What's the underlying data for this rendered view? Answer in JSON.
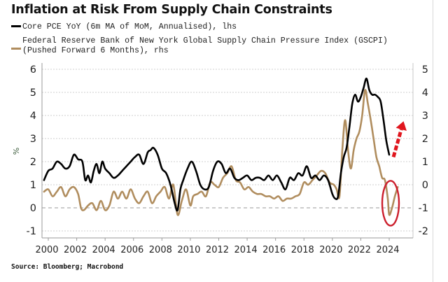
{
  "chart_data": {
    "type": "line",
    "title": "Inflation at Risk From Supply Chain Constraints",
    "legend": [
      {
        "label": "Core PCE YoY (6m MA of MoM, Annualised), lhs",
        "color": "#000000"
      },
      {
        "label_line1": "Federal Reserve Bank of New York Global Supply Chain Pressure Index (GSCPI)",
        "label_line2": "(Pushed Forward 6 Months), rhs",
        "color": "#b08d5e"
      }
    ],
    "ylabel_left": "%",
    "left_axis": {
      "ylim": [
        -1.2,
        6.2
      ],
      "ticks": [
        "6",
        "5",
        "4",
        "3",
        "2",
        "1",
        "0",
        "-1"
      ]
    },
    "right_axis": {
      "ylim": [
        -2.2,
        5.2
      ],
      "ticks": [
        "5",
        "4",
        "3",
        "2",
        "1",
        "0",
        "-1",
        "-2"
      ]
    },
    "x_ticks": [
      "2000",
      "2002",
      "2004",
      "2006",
      "2008",
      "2010",
      "2012",
      "2014",
      "2016",
      "2018",
      "2020",
      "2022",
      "2024"
    ],
    "xlim": [
      1999.7,
      2025.8
    ],
    "grid": true,
    "zero_line_left": 0,
    "series": [
      {
        "name": "Core PCE YoY (6m MA of MoM, Annualised)",
        "axis": "lhs",
        "x": [
          1999.7,
          2000.0,
          2000.3,
          2000.6,
          2000.9,
          2001.2,
          2001.5,
          2001.8,
          2002.1,
          2002.4,
          2002.6,
          2002.8,
          2003.0,
          2003.2,
          2003.4,
          2003.6,
          2003.8,
          2004.0,
          2004.3,
          2004.6,
          2004.9,
          2005.2,
          2005.5,
          2005.8,
          2006.1,
          2006.4,
          2006.7,
          2007.0,
          2007.2,
          2007.4,
          2007.7,
          2008.0,
          2008.3,
          2008.6,
          2008.9,
          2009.1,
          2009.3,
          2009.5,
          2009.8,
          2010.1,
          2010.4,
          2010.7,
          2011.0,
          2011.3,
          2011.6,
          2011.9,
          2012.2,
          2012.5,
          2012.8,
          2013.1,
          2013.4,
          2013.7,
          2014.0,
          2014.3,
          2014.6,
          2014.9,
          2015.2,
          2015.5,
          2015.8,
          2016.1,
          2016.4,
          2016.7,
          2017.0,
          2017.3,
          2017.6,
          2017.9,
          2018.2,
          2018.5,
          2018.8,
          2019.1,
          2019.4,
          2019.7,
          2020.0,
          2020.2,
          2020.4,
          2020.6,
          2020.8,
          2021.0,
          2021.2,
          2021.4,
          2021.6,
          2021.8,
          2022.0,
          2022.2,
          2022.4,
          2022.6,
          2022.8,
          2023.0,
          2023.2,
          2023.4,
          2023.6,
          2023.8,
          2024.0
        ],
        "values": [
          1.2,
          1.6,
          1.7,
          2.0,
          1.9,
          1.7,
          1.8,
          2.3,
          2.1,
          2.0,
          1.2,
          1.4,
          1.1,
          1.6,
          1.9,
          1.5,
          2.0,
          1.7,
          1.5,
          1.3,
          1.4,
          1.6,
          1.8,
          2.0,
          2.2,
          2.3,
          1.9,
          2.4,
          2.5,
          2.6,
          2.3,
          1.7,
          1.5,
          1.0,
          0.2,
          -0.1,
          0.8,
          1.2,
          1.7,
          2.0,
          1.6,
          1.0,
          0.8,
          0.9,
          1.6,
          2.0,
          1.9,
          1.5,
          1.7,
          1.3,
          1.2,
          1.3,
          1.4,
          1.2,
          1.3,
          1.3,
          1.2,
          1.4,
          1.2,
          1.4,
          1.1,
          0.8,
          1.3,
          1.2,
          1.5,
          1.4,
          1.8,
          1.3,
          1.4,
          1.2,
          1.4,
          1.2,
          0.6,
          0.4,
          0.5,
          1.5,
          2.2,
          2.6,
          3.5,
          4.5,
          4.9,
          4.6,
          4.8,
          5.2,
          5.6,
          5.1,
          4.9,
          4.9,
          4.8,
          4.6,
          3.8,
          2.9,
          2.3
        ]
      },
      {
        "name": "GSCPI (Pushed Forward 6 Months)",
        "axis": "rhs",
        "x": [
          1999.7,
          2000.0,
          2000.3,
          2000.6,
          2000.9,
          2001.2,
          2001.5,
          2001.8,
          2002.1,
          2002.3,
          2002.5,
          2002.8,
          2003.1,
          2003.4,
          2003.7,
          2004.0,
          2004.3,
          2004.6,
          2004.9,
          2005.2,
          2005.5,
          2005.8,
          2006.1,
          2006.4,
          2006.7,
          2007.0,
          2007.3,
          2007.6,
          2007.9,
          2008.2,
          2008.5,
          2008.8,
          2009.1,
          2009.4,
          2009.7,
          2010.0,
          2010.2,
          2010.5,
          2010.8,
          2011.1,
          2011.4,
          2011.7,
          2012.0,
          2012.3,
          2012.6,
          2012.9,
          2013.2,
          2013.5,
          2013.8,
          2014.1,
          2014.4,
          2014.7,
          2015.0,
          2015.3,
          2015.6,
          2015.9,
          2016.2,
          2016.5,
          2016.8,
          2017.1,
          2017.4,
          2017.7,
          2018.0,
          2018.3,
          2018.6,
          2018.9,
          2019.2,
          2019.5,
          2019.8,
          2020.1,
          2020.3,
          2020.5,
          2020.7,
          2020.9,
          2021.1,
          2021.3,
          2021.5,
          2021.7,
          2021.9,
          2022.1,
          2022.3,
          2022.5,
          2022.7,
          2022.9,
          2023.1,
          2023.3,
          2023.5,
          2023.7,
          2023.9,
          2024.0,
          2024.2,
          2024.4,
          2024.6
        ],
        "values": [
          -0.3,
          -0.2,
          -0.5,
          -0.3,
          -0.1,
          -0.5,
          -0.2,
          -0.1,
          -0.4,
          -1.0,
          -1.1,
          -0.9,
          -0.8,
          -1.1,
          -0.7,
          -1.1,
          -0.9,
          -0.3,
          -0.6,
          -0.3,
          -0.6,
          -0.2,
          -0.6,
          -0.8,
          -0.5,
          -0.3,
          -0.8,
          -0.5,
          -0.3,
          -0.1,
          -0.6,
          0.0,
          -1.3,
          -0.7,
          -0.2,
          -0.9,
          -0.5,
          -0.4,
          -0.3,
          -0.5,
          0.1,
          0.0,
          -0.1,
          0.3,
          0.5,
          0.8,
          0.2,
          0.1,
          -0.2,
          -0.1,
          -0.3,
          -0.4,
          -0.4,
          -0.5,
          -0.5,
          -0.6,
          -0.5,
          -0.7,
          -0.6,
          -0.6,
          -0.5,
          -0.4,
          0.1,
          0.0,
          0.2,
          0.4,
          0.6,
          0.5,
          0.1,
          0.0,
          -0.2,
          -0.5,
          1.5,
          2.8,
          1.5,
          0.7,
          1.5,
          2.0,
          2.3,
          3.0,
          4.1,
          3.5,
          2.8,
          2.0,
          1.2,
          0.8,
          0.3,
          0.2,
          -0.6,
          -1.3,
          -1.0,
          -0.5,
          -0.1
        ]
      }
    ],
    "annotations": [
      {
        "type": "ellipse",
        "color": "#cc1f2d",
        "around": "GSCPI trough 2023-2024"
      },
      {
        "type": "dashed-arrow",
        "color": "#e0161e",
        "direction": "up-right",
        "from_series": "Core PCE end 2024"
      }
    ]
  },
  "source": "Source: Bloomberg; Macrobond"
}
